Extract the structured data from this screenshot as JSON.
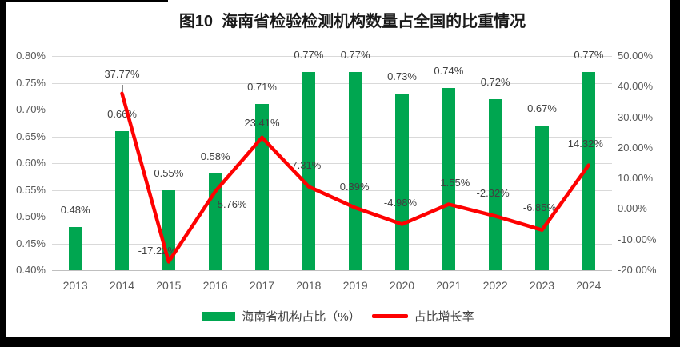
{
  "title": "图10  海南省检验检测机构数量占全国的比重情况",
  "chart_data": {
    "type": "combo-bar-line",
    "categories": [
      "2013",
      "2014",
      "2015",
      "2016",
      "2017",
      "2018",
      "2019",
      "2020",
      "2021",
      "2022",
      "2023",
      "2024"
    ],
    "series": [
      {
        "name": "海南省机构占比（%）",
        "type": "bar",
        "axis": "left",
        "color": "#00A650",
        "values": [
          0.48,
          0.66,
          0.55,
          0.58,
          0.71,
          0.77,
          0.77,
          0.73,
          0.74,
          0.72,
          0.67,
          0.77
        ],
        "data_labels": [
          "0.48%",
          "0.66%",
          "0.55%",
          "0.58%",
          "0.71%",
          "0.77%",
          "0.77%",
          "0.73%",
          "0.74%",
          "0.72%",
          "0.67%",
          "0.77%"
        ]
      },
      {
        "name": "占比增长率",
        "type": "line",
        "axis": "right",
        "color": "#FE0101",
        "values": [
          null,
          37.77,
          -17.22,
          5.76,
          23.41,
          7.31,
          0.39,
          -4.98,
          1.55,
          -2.32,
          -6.85,
          14.32
        ],
        "data_labels": [
          "",
          "37.77%",
          "-17.22%",
          "5.76%",
          "23.41%",
          "7.31%",
          "0.39%",
          "-4.98%",
          "1.55%",
          "-2.32%",
          "-6.85%",
          "14.32%"
        ],
        "label_offsets": [
          [
            0,
            0
          ],
          [
            0,
            -24
          ],
          [
            -14,
            -13
          ],
          [
            21,
            17
          ],
          [
            0,
            -18
          ],
          [
            -3,
            -26
          ],
          [
            -1,
            -26
          ],
          [
            -2,
            -26
          ],
          [
            8,
            -26
          ],
          [
            -3,
            -28
          ],
          [
            -3,
            -28
          ],
          [
            -4,
            -27
          ]
        ]
      }
    ],
    "left_axis": {
      "min": 0.4,
      "max": 0.8,
      "step": 0.05,
      "ticks": [
        "0.80%",
        "0.75%",
        "0.70%",
        "0.65%",
        "0.60%",
        "0.55%",
        "0.50%",
        "0.45%",
        "0.40%"
      ]
    },
    "right_axis": {
      "min": -20,
      "max": 50,
      "step": 10,
      "ticks": [
        "50.00%",
        "40.00%",
        "30.00%",
        "20.00%",
        "10.00%",
        "0.00%",
        "-10.00%",
        "-20.00%"
      ]
    },
    "gridlines": "horizontal",
    "legend_position": "bottom"
  },
  "legend": {
    "items": [
      {
        "label": "海南省机构占比（%）",
        "marker": "bar",
        "color": "#00A650"
      },
      {
        "label": "占比增长率",
        "marker": "line",
        "color": "#FE0101"
      }
    ]
  },
  "colors": {
    "bar": "#00A650",
    "line": "#FE0101",
    "axis_text": "#595959",
    "data_label_text": "#404040",
    "gridline": "#D9D9D9",
    "frame": "#000000",
    "background": "#FFFFFF"
  }
}
